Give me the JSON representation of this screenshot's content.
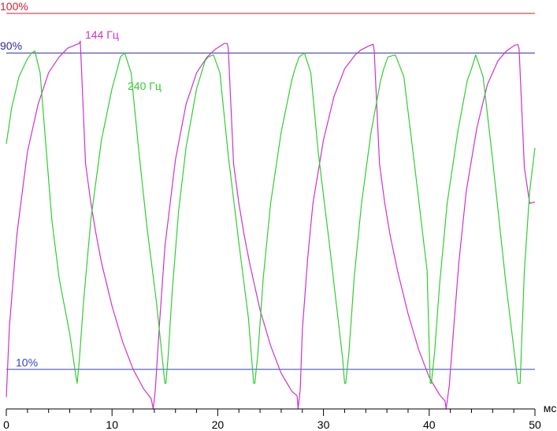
{
  "chart_data": {
    "type": "line",
    "xlabel": "мс",
    "xlim": [
      0,
      50
    ],
    "ylim": [
      0,
      100
    ],
    "x_ticks": [
      0,
      10,
      20,
      30,
      40,
      50
    ],
    "x_minor_step": 2,
    "reference_lines": [
      {
        "label": "100%",
        "value": 100,
        "color": "#cc2233"
      },
      {
        "label": "90%",
        "value": 90,
        "color": "#2a2a9a"
      },
      {
        "label": "10%",
        "value": 10,
        "color": "#3344cc"
      }
    ],
    "series": [
      {
        "name": "144 Гц",
        "color": "#cc33cc",
        "x": [
          0,
          0.3,
          1,
          2,
          3,
          4,
          5,
          5.8,
          6.5,
          6.9,
          7,
          7.5,
          8,
          8.5,
          9,
          10,
          11,
          12,
          13,
          13.7,
          13.9,
          14.1,
          14.5,
          15,
          16,
          17,
          18,
          19,
          19.8,
          20.6,
          20.9,
          21,
          21.5,
          22,
          22.5,
          23,
          24,
          25,
          26,
          27,
          27.5,
          27.6,
          27.8,
          28,
          28.5,
          29,
          30,
          31,
          32,
          33,
          33.5,
          34.3,
          34.7,
          34.8,
          35.3,
          35.8,
          36.3,
          37,
          38,
          39,
          40,
          41,
          41.5,
          41.6,
          41.9,
          42.3,
          42.8,
          43.5,
          44.5,
          45.5,
          46.5,
          47.3,
          48.1,
          48.4,
          48.5,
          49,
          49.5,
          50
        ],
        "values": [
          3,
          21,
          44,
          65,
          77,
          85,
          89,
          91.2,
          92,
          92.4,
          93,
          62,
          52,
          44,
          37,
          26,
          17,
          10,
          5,
          2.6,
          0,
          5,
          22,
          41,
          63,
          77,
          85,
          89,
          91,
          92.4,
          92.4,
          91,
          62,
          52,
          44,
          37,
          25,
          16,
          9,
          4.5,
          3.3,
          0,
          5,
          20,
          38,
          52,
          68,
          79,
          86,
          89.5,
          90.7,
          91.8,
          92.2,
          90.5,
          62,
          52,
          44,
          35,
          24,
          15,
          8,
          3.5,
          2,
          0,
          6,
          20,
          37,
          55,
          71,
          82,
          88,
          90.5,
          92,
          92.1,
          91,
          61,
          52,
          52.3
        ]
      },
      {
        "name": "240 Гц",
        "color": "#33cc33",
        "x": [
          0,
          0.5,
          1.2,
          2,
          2.4,
          2.7,
          3.2,
          3.7,
          4.3,
          5,
          6,
          6.6,
          6.7,
          6.9,
          7.3,
          8,
          9,
          10,
          10.6,
          10.8,
          11.2,
          11.8,
          12.5,
          13.3,
          14.2,
          15,
          15.1,
          15.3,
          15.7,
          16.3,
          17,
          18,
          18.8,
          19.1,
          19.6,
          20.2,
          21,
          22,
          22.9,
          23.4,
          23.5,
          23.8,
          24.3,
          25,
          26,
          27,
          27.3,
          27.7,
          28.2,
          28.8,
          29.5,
          30.5,
          31.8,
          32,
          32.1,
          32.4,
          32.9,
          33.6,
          34.5,
          35.4,
          35.7,
          36.1,
          36.8,
          37.6,
          38.6,
          39.8,
          40.1,
          40.2,
          40.5,
          41,
          41.7,
          42.7,
          43.6,
          44,
          44.4,
          45.1,
          46,
          47.2,
          48.4,
          48.6,
          48.7,
          49,
          49.5,
          50
        ],
        "values": [
          67,
          76,
          84,
          88.5,
          90,
          90.5,
          85,
          68,
          48,
          33,
          19,
          8,
          6.5,
          12,
          27,
          48,
          68,
          81,
          87,
          89,
          90,
          85,
          66,
          46,
          27,
          6.5,
          6.5,
          13,
          30,
          50,
          66,
          81,
          88,
          89,
          89.5,
          85,
          64,
          42,
          23,
          6.5,
          6.5,
          14,
          33,
          52,
          70,
          83,
          86,
          89,
          90,
          85,
          65,
          43,
          13,
          6.5,
          6.5,
          14,
          33,
          52,
          70,
          83,
          86,
          89,
          89.5,
          84,
          62,
          35,
          6.5,
          6.5,
          14,
          32,
          52,
          70,
          83,
          86,
          89.5,
          84,
          63,
          33,
          6.5,
          6.5,
          14,
          35,
          55,
          66
        ]
      }
    ]
  }
}
